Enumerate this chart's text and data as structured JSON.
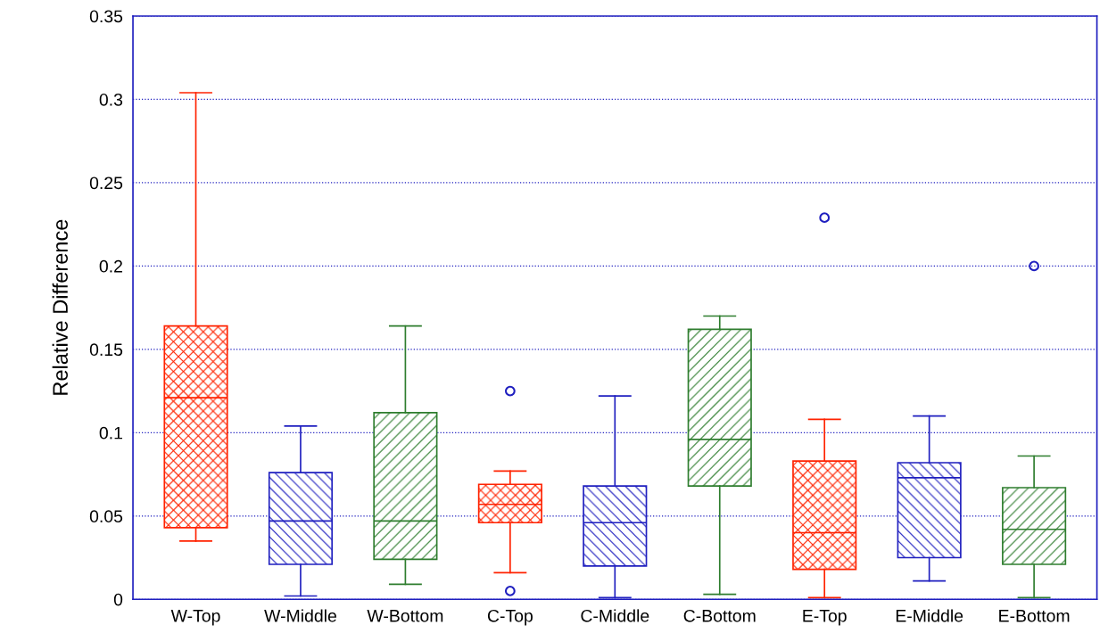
{
  "chart_data": {
    "type": "box",
    "ylabel": "Relative Difference",
    "categories": [
      "W-Top",
      "W-Middle",
      "W-Bottom",
      "C-Top",
      "C-Middle",
      "C-Bottom",
      "E-Top",
      "E-Middle",
      "E-Bottom"
    ],
    "colors": [
      "#ff2200",
      "#1f1fbf",
      "#2e7d2e",
      "#ff2200",
      "#1f1fbf",
      "#2e7d2e",
      "#ff2200",
      "#1f1fbf",
      "#2e7d2e"
    ],
    "boxes": [
      {
        "low": 0.035,
        "q1": 0.043,
        "median": 0.121,
        "q3": 0.164,
        "high": 0.304
      },
      {
        "low": 0.002,
        "q1": 0.021,
        "median": 0.047,
        "q3": 0.076,
        "high": 0.104
      },
      {
        "low": 0.009,
        "q1": 0.024,
        "median": 0.047,
        "q3": 0.112,
        "high": 0.164
      },
      {
        "low": 0.016,
        "q1": 0.046,
        "median": 0.057,
        "q3": 0.069,
        "high": 0.077,
        "outliers": [
          0.125,
          0.005
        ]
      },
      {
        "low": 0.001,
        "q1": 0.02,
        "median": 0.046,
        "q3": 0.068,
        "high": 0.122
      },
      {
        "low": 0.003,
        "q1": 0.068,
        "median": 0.096,
        "q3": 0.162,
        "high": 0.17
      },
      {
        "low": 0.001,
        "q1": 0.018,
        "median": 0.04,
        "q3": 0.083,
        "high": 0.108,
        "outliers": [
          0.229
        ]
      },
      {
        "low": 0.011,
        "q1": 0.025,
        "median": 0.073,
        "q3": 0.082,
        "high": 0.11
      },
      {
        "low": 0.001,
        "q1": 0.021,
        "median": 0.042,
        "q3": 0.067,
        "high": 0.086,
        "outliers": [
          0.2
        ]
      }
    ],
    "ylim": [
      0,
      0.35
    ],
    "yticks": [
      0,
      0.05,
      0.1,
      0.15,
      0.2,
      0.25,
      0.3,
      0.35
    ],
    "grid": "y"
  }
}
